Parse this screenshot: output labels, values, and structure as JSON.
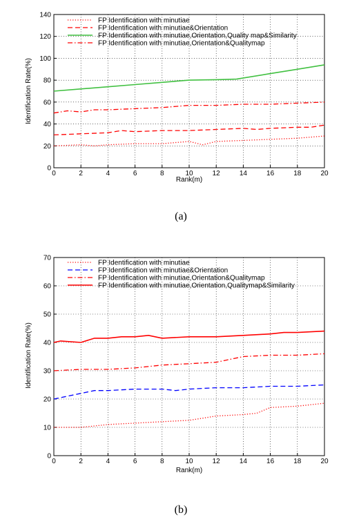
{
  "chart_data": [
    {
      "type": "line",
      "panel_label": "(a)",
      "xlabel": "Rank(m)",
      "ylabel": "Identification Rate(%)",
      "xlim": [
        0,
        20
      ],
      "ylim": [
        0,
        140
      ],
      "xticks": [
        0,
        2,
        4,
        6,
        8,
        10,
        12,
        14,
        16,
        18,
        20
      ],
      "yticks": [
        0,
        20,
        40,
        60,
        80,
        100,
        120,
        140
      ],
      "grid": true,
      "legend_position": "top-right",
      "series": [
        {
          "name": "FP Identification with minutiae",
          "color": "#ff0000",
          "style": "dotted",
          "x": [
            0,
            2,
            3,
            4,
            6,
            8,
            10,
            11,
            12,
            14,
            16,
            18,
            20
          ],
          "y": [
            20,
            21,
            20,
            21,
            22,
            22,
            24,
            21,
            24,
            25,
            26,
            27,
            29
          ]
        },
        {
          "name": "FP Identification with minutiae&Orientation",
          "color": "#ff0000",
          "style": "dashed",
          "x": [
            0,
            2,
            4,
            5,
            6,
            8,
            10,
            12,
            14,
            15,
            16,
            18,
            19,
            20
          ],
          "y": [
            30,
            31,
            32,
            34,
            33,
            34,
            34,
            35,
            36,
            35,
            36,
            37,
            37,
            39
          ]
        },
        {
          "name": "FP Identification with minutiae,Orientation,Quality map&Similarity",
          "color": "#40c040",
          "style": "solid",
          "x": [
            0,
            2,
            4,
            6,
            8,
            10,
            12,
            13.5,
            16,
            18,
            20
          ],
          "y": [
            70,
            72,
            74,
            76,
            78,
            80,
            80.5,
            81,
            86,
            90,
            94
          ]
        },
        {
          "name": "FP Identification with minutiae,Orientation&Qualitymap",
          "color": "#ff0000",
          "style": "dashdot",
          "x": [
            0,
            1,
            2,
            3,
            4,
            6,
            8,
            10,
            12,
            14,
            16,
            18,
            20
          ],
          "y": [
            50,
            52,
            51,
            53,
            53,
            54,
            55,
            57,
            57,
            58,
            58,
            59,
            60
          ]
        }
      ]
    },
    {
      "type": "line",
      "panel_label": "(b)",
      "xlabel": "Rank(m)",
      "ylabel": "Identification Rate(%)",
      "xlim": [
        0,
        20
      ],
      "ylim": [
        0,
        70
      ],
      "xticks": [
        0,
        2,
        4,
        6,
        8,
        10,
        12,
        14,
        16,
        18,
        20
      ],
      "yticks": [
        0,
        10,
        20,
        30,
        40,
        50,
        60,
        70
      ],
      "grid": true,
      "legend_position": "top-right",
      "series": [
        {
          "name": "FP Identification with minutiae",
          "color": "#ff0000",
          "style": "dotted",
          "x": [
            0,
            2,
            4,
            6,
            8,
            10,
            12,
            14,
            15,
            16,
            18,
            20
          ],
          "y": [
            10,
            10,
            11,
            11.5,
            12,
            12.5,
            14,
            14.5,
            15,
            17,
            17.5,
            18.5
          ]
        },
        {
          "name": "FP Identification with minutiae&Orientation",
          "color": "#0000ff",
          "style": "dashed",
          "x": [
            0,
            2,
            3,
            4,
            6,
            8,
            9,
            10,
            12,
            14,
            16,
            18,
            20
          ],
          "y": [
            20,
            22,
            23,
            23,
            23.5,
            23.5,
            23,
            23.5,
            24,
            24,
            24.5,
            24.5,
            25
          ]
        },
        {
          "name": "FP Identification with minutiae,Orientation&Qualitymap",
          "color": "#ff0000",
          "style": "dashdot",
          "x": [
            0,
            2,
            4,
            6,
            8,
            10,
            12,
            14,
            16,
            18,
            20
          ],
          "y": [
            30,
            30.5,
            30.5,
            31,
            32,
            32.5,
            33,
            35,
            35.5,
            35.5,
            36
          ]
        },
        {
          "name": "FP Identification with minutiae,Orientation,Qualitymap&Similarity",
          "color": "#ff0000",
          "style": "solid",
          "x": [
            0,
            0.5,
            2,
            3,
            4,
            5,
            6,
            7,
            8,
            10,
            12,
            14,
            16,
            17,
            18,
            20
          ],
          "y": [
            40,
            40.5,
            40,
            41.5,
            41.5,
            42,
            42,
            42.5,
            41.5,
            42,
            42,
            42.5,
            43,
            43.5,
            43.5,
            44
          ]
        }
      ]
    }
  ]
}
